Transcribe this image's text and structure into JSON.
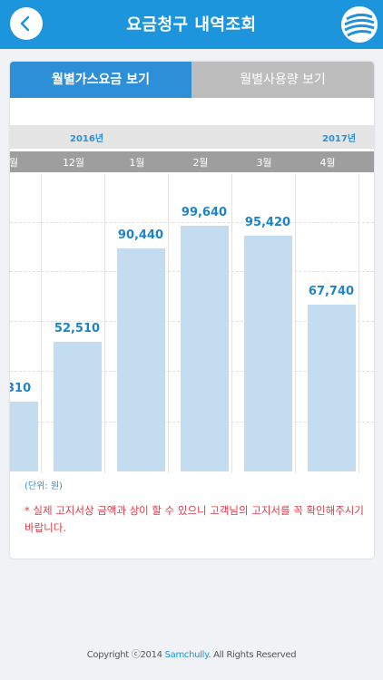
{
  "header": {
    "title": "요금청구 내역조회"
  },
  "tabs": [
    {
      "label": "월별가스요금 보기",
      "active": true
    },
    {
      "label": "월별사용량 보기",
      "active": false
    }
  ],
  "chart": {
    "years": [
      "2016년",
      "2017년"
    ],
    "months": [
      "월",
      "12월",
      "1월",
      "2월",
      "3월",
      "4월"
    ],
    "bar_labels": [
      "310",
      "52,510",
      "90,440",
      "99,640",
      "95,420",
      "67,740"
    ],
    "unit": "(단위: 원)",
    "note": "* 실제 고지서상 금액과 상이 할 수 있으니 고객님의 고지서를 꼭 확인해주시기 바랍니다."
  },
  "chart_data": {
    "type": "bar",
    "categories": [
      "월",
      "12월",
      "1월",
      "2월",
      "3월",
      "4월"
    ],
    "values": [
      null,
      52510,
      90440,
      99640,
      95420,
      67740
    ],
    "partial_label_first": "310",
    "ylabel": "(단위: 원)",
    "bar_color": "#c3dcf0",
    "label_color": "#1f83c9"
  },
  "footer": {
    "prefix": "Copyright ⓒ2014 ",
    "brand": "Samchully",
    "suffix": ". All Rights Reserved"
  },
  "colors": {
    "header": "#1d95dc",
    "tab_active": "#2d8fd8",
    "tab_inactive": "#bdbdbd",
    "note": "#e23a47"
  }
}
